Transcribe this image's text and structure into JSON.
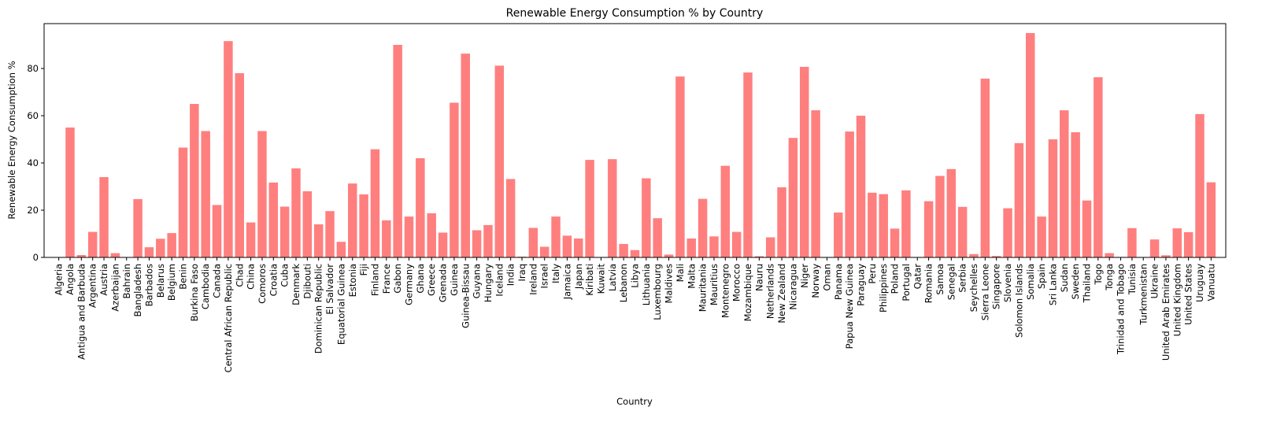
{
  "chart_data": {
    "type": "bar",
    "title": "Renewable Energy Consumption % by Country",
    "xlabel": "Country",
    "ylabel": "Renewable Energy Consumption %",
    "ylim": [
      0,
      99
    ],
    "yticks": [
      0,
      20,
      40,
      60,
      80
    ],
    "grid": false,
    "bar_color": "#ff7f7f",
    "categories": [
      "Algeria",
      "Angola",
      "Antigua and Barbuda",
      "Argentina",
      "Austria",
      "Azerbaijan",
      "Bahrain",
      "Bangladesh",
      "Barbados",
      "Belarus",
      "Belgium",
      "Benin",
      "Burkina Faso",
      "Cambodia",
      "Canada",
      "Central African Republic",
      "Chad",
      "China",
      "Comoros",
      "Croatia",
      "Cuba",
      "Denmark",
      "Djibouti",
      "Dominican Republic",
      "El Salvador",
      "Equatorial Guinea",
      "Estonia",
      "Fiji",
      "Finland",
      "France",
      "Gabon",
      "Germany",
      "Ghana",
      "Greece",
      "Grenada",
      "Guinea",
      "Guinea-Bissau",
      "Guyana",
      "Hungary",
      "Iceland",
      "India",
      "Iraq",
      "Ireland",
      "Israel",
      "Italy",
      "Jamaica",
      "Japan",
      "Kiribati",
      "Kuwait",
      "Latvia",
      "Lebanon",
      "Libya",
      "Lithuania",
      "Luxembourg",
      "Maldives",
      "Mali",
      "Malta",
      "Mauritania",
      "Mauritius",
      "Montenegro",
      "Morocco",
      "Mozambique",
      "Nauru",
      "Netherlands",
      "New Zealand",
      "Nicaragua",
      "Niger",
      "Norway",
      "Oman",
      "Panama",
      "Papua New Guinea",
      "Paraguay",
      "Peru",
      "Philippines",
      "Poland",
      "Portugal",
      "Qatar",
      "Romania",
      "Samoa",
      "Senegal",
      "Serbia",
      "Seychelles",
      "Sierra Leone",
      "Singapore",
      "Slovenia",
      "Solomon Islands",
      "Somalia",
      "Spain",
      "Sri Lanka",
      "Sudan",
      "Sweden",
      "Thailand",
      "Togo",
      "Tonga",
      "Trinidad and Tobago",
      "Tunisia",
      "Turkmenistan",
      "Ukraine",
      "United Arab Emirates",
      "United Kingdom",
      "United States",
      "Uruguay",
      "Vanuatu"
    ],
    "values": [
      0.1,
      55,
      1,
      10.8,
      34,
      1.8,
      0,
      24.7,
      4.3,
      7.9,
      10.3,
      46.5,
      65,
      53.5,
      22.2,
      91.6,
      78,
      14.8,
      53.5,
      31.7,
      21.5,
      37.7,
      28,
      14,
      19.6,
      6.6,
      31.3,
      26.7,
      45.8,
      15.7,
      90,
      17.3,
      42,
      18.7,
      10.5,
      65.5,
      86.3,
      11.5,
      13.7,
      81.2,
      33.2,
      0.3,
      12.5,
      4.5,
      17.3,
      9.2,
      8,
      41.3,
      0,
      41.6,
      5.7,
      3.1,
      33.5,
      16.6,
      1.2,
      76.6,
      8,
      24.8,
      8.9,
      38.8,
      10.8,
      78.3,
      0.5,
      8.5,
      29.7,
      50.6,
      80.7,
      62.3,
      0,
      19,
      53.3,
      60,
      27.4,
      26.8,
      12.2,
      28.4,
      0,
      23.8,
      34.5,
      37.4,
      21.4,
      1.4,
      75.7,
      0.6,
      20.8,
      48.4,
      95,
      17.3,
      50,
      62.3,
      53,
      24.1,
      76.3,
      1.8,
      0.2,
      12.4,
      0,
      7.6,
      0.9,
      12.3,
      10.7,
      60.7,
      31.8
    ]
  }
}
